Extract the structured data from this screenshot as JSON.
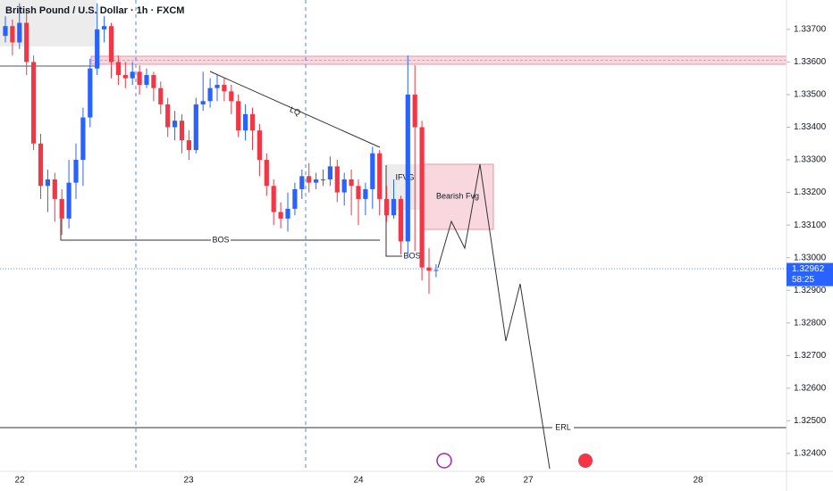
{
  "chart_data": {
    "type": "candlestick",
    "title": "British Pound / U.S. Dollar · 1h · FXCM",
    "open": [
      1.3368,
      1.3371,
      1.3366,
      1.3372,
      1.336,
      1.3335,
      1.3322,
      1.3324,
      1.3318,
      1.3312,
      1.3323,
      1.333,
      1.3343,
      1.3358,
      1.337,
      1.3371,
      1.336,
      1.3356,
      1.3355,
      1.3357,
      1.3353,
      1.3356,
      1.3352,
      1.3347,
      1.334,
      1.3342,
      1.3336,
      1.3333,
      1.3347,
      1.3348,
      1.3352,
      1.3353,
      1.3351,
      1.3348,
      1.3339,
      1.3344,
      1.3339,
      1.333,
      1.3322,
      1.3314,
      1.3312,
      1.3315,
      1.3321,
      1.3325,
      1.3323,
      1.3324,
      1.3324,
      1.3328,
      1.332,
      1.3324,
      1.3322,
      1.3318,
      1.3321,
      1.3332,
      1.3318,
      1.3313,
      1.3318,
      1.3305,
      1.335,
      1.334,
      1.3297,
      1.3296
    ],
    "high": [
      1.3374,
      1.3373,
      1.3378,
      1.3376,
      1.3362,
      1.3338,
      1.3327,
      1.3326,
      1.3321,
      1.333,
      1.3335,
      1.3346,
      1.3361,
      1.3378,
      1.3374,
      1.3372,
      1.3362,
      1.336,
      1.336,
      1.3359,
      1.3358,
      1.3357,
      1.3354,
      1.3349,
      1.3345,
      1.3344,
      1.3339,
      1.3349,
      1.3357,
      1.3355,
      1.3356,
      1.3355,
      1.3353,
      1.335,
      1.3347,
      1.3346,
      1.3341,
      1.3332,
      1.3324,
      1.3317,
      1.332,
      1.3323,
      1.3327,
      1.3329,
      1.3326,
      1.3327,
      1.3331,
      1.333,
      1.3326,
      1.3327,
      1.3324,
      1.3323,
      1.3334,
      1.3333,
      1.3322,
      1.3324,
      1.3319,
      1.3362,
      1.3359,
      1.3342,
      1.3303,
      1.3298
    ],
    "low": [
      1.3366,
      1.3362,
      1.3364,
      1.3356,
      1.3333,
      1.3318,
      1.3314,
      1.3311,
      1.3307,
      1.3309,
      1.3318,
      1.3322,
      1.334,
      1.3356,
      1.3366,
      1.3355,
      1.3353,
      1.3352,
      1.3353,
      1.335,
      1.3352,
      1.3348,
      1.3344,
      1.3337,
      1.3336,
      1.3332,
      1.333,
      1.3332,
      1.3345,
      1.3346,
      1.3348,
      1.3348,
      1.3344,
      1.3337,
      1.3336,
      1.3333,
      1.3325,
      1.3319,
      1.331,
      1.3309,
      1.3308,
      1.3313,
      1.3318,
      1.332,
      1.3321,
      1.3322,
      1.3322,
      1.3317,
      1.3316,
      1.3313,
      1.331,
      1.3313,
      1.3315,
      1.3313,
      1.3311,
      1.3312,
      1.3301,
      1.33,
      1.3302,
      1.3293,
      1.3289,
      1.3294
    ],
    "close": [
      1.3371,
      1.3366,
      1.3372,
      1.336,
      1.3335,
      1.3322,
      1.3324,
      1.3318,
      1.3312,
      1.3323,
      1.333,
      1.3343,
      1.3358,
      1.337,
      1.3371,
      1.336,
      1.3356,
      1.3355,
      1.3357,
      1.3353,
      1.3356,
      1.3352,
      1.3347,
      1.334,
      1.3342,
      1.3336,
      1.3333,
      1.3347,
      1.3348,
      1.3352,
      1.3353,
      1.3351,
      1.3348,
      1.3339,
      1.3344,
      1.3339,
      1.333,
      1.3322,
      1.3314,
      1.3312,
      1.3315,
      1.3321,
      1.3325,
      1.3323,
      1.3324,
      1.3324,
      1.3328,
      1.332,
      1.3324,
      1.3322,
      1.3318,
      1.3321,
      1.3332,
      1.3318,
      1.3313,
      1.3318,
      1.3305,
      1.335,
      1.334,
      1.3297,
      1.3296,
      1.32962
    ],
    "up_color": "#2962ff",
    "down_color": "#f23645",
    "ylim": [
      1.32345,
      1.3379
    ],
    "yticks": [
      {
        "value": 1.324,
        "label": "1.32400"
      },
      {
        "value": 1.325,
        "label": "1.32500"
      },
      {
        "value": 1.326,
        "label": "1.32600"
      },
      {
        "value": 1.327,
        "label": "1.32700"
      },
      {
        "value": 1.328,
        "label": "1.32800"
      },
      {
        "value": 1.329,
        "label": "1.32900"
      },
      {
        "value": 1.33,
        "label": "1.33000"
      },
      {
        "value": 1.331,
        "label": "1.33100"
      },
      {
        "value": 1.332,
        "label": "1.33200"
      },
      {
        "value": 1.333,
        "label": "1.33300"
      },
      {
        "value": 1.334,
        "label": "1.33400"
      },
      {
        "value": 1.335,
        "label": "1.33500"
      },
      {
        "value": 1.336,
        "label": "1.33600"
      },
      {
        "value": 1.337,
        "label": "1.33700"
      }
    ],
    "x_labels": [
      "22",
      "23",
      "24",
      "26",
      "27",
      "28"
    ],
    "last_price": {
      "value": 1.32962,
      "label": "1.32962"
    },
    "countdown": "58:25",
    "grid": false,
    "annotations": {
      "bos_1": "BOS",
      "bos_2": "BOS",
      "lq": "LQ",
      "ifvg": "IFVG",
      "fvg": "Bearish Fvg",
      "erl": "ERL"
    }
  }
}
